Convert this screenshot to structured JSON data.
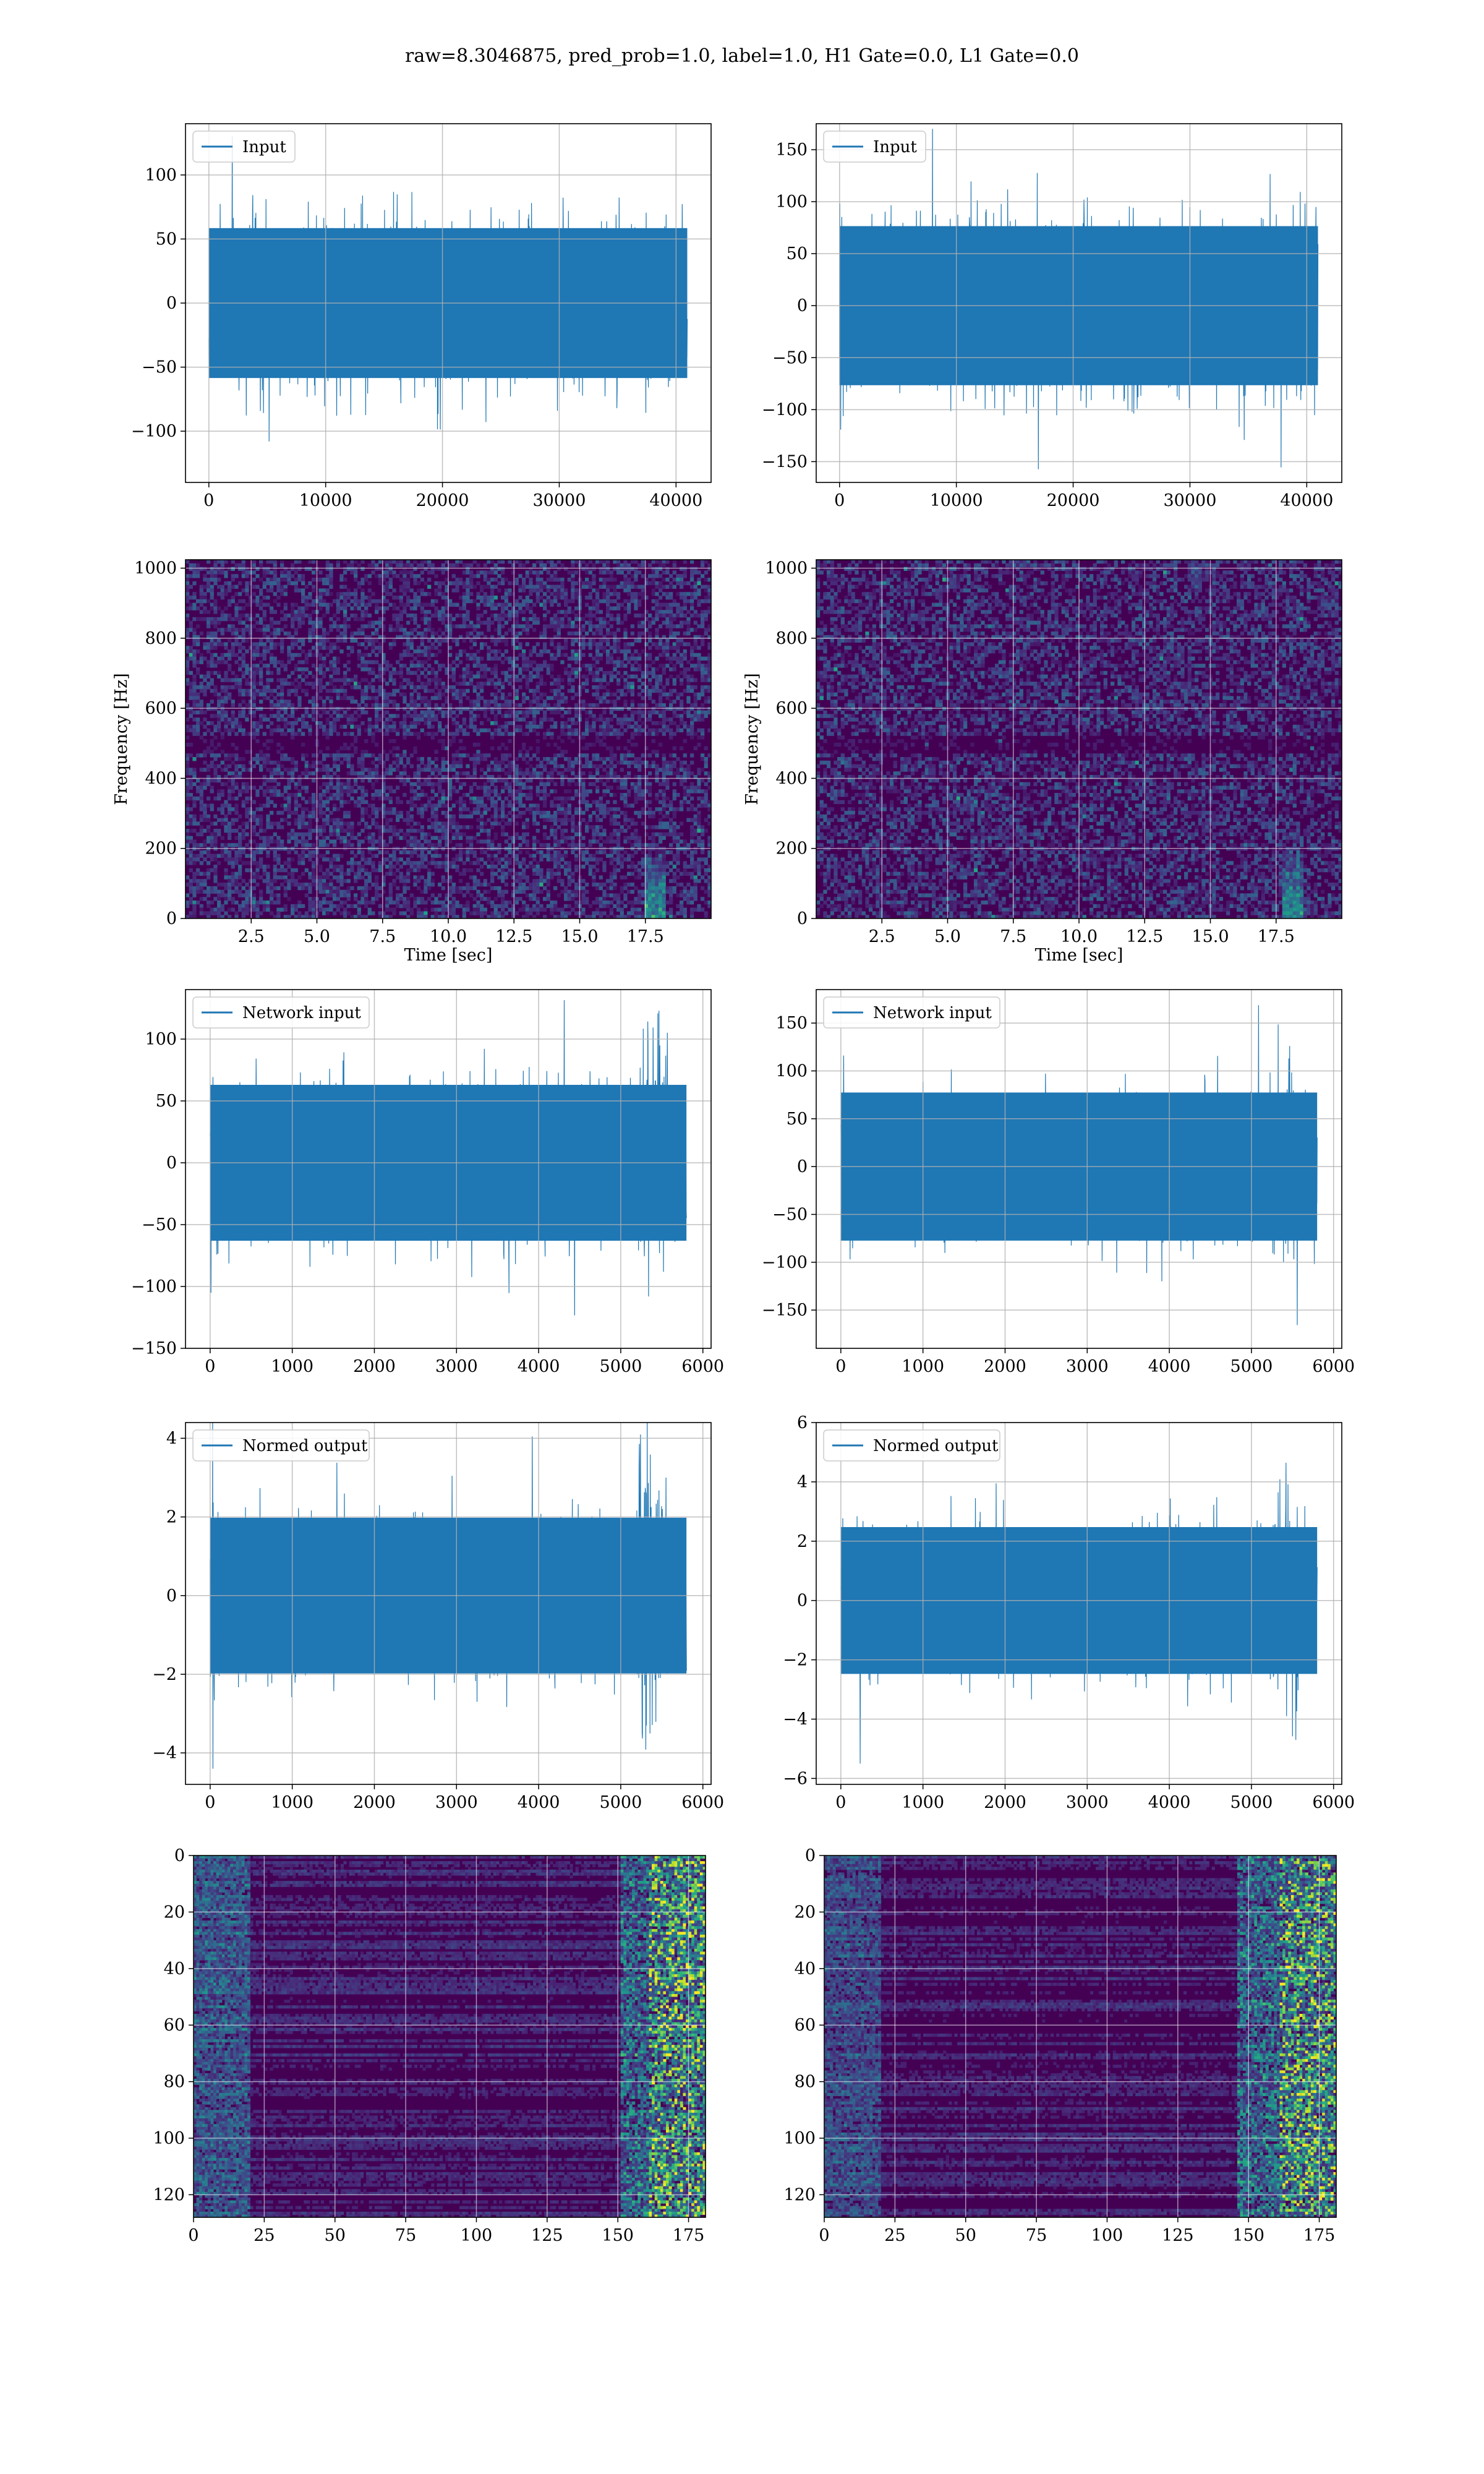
{
  "suptitle": "raw=8.3046875, pred_prob=1.0, label=1.0, H1 Gate=0.0, L1 Gate=0.0",
  "colors": {
    "line": "#1f77b4",
    "grid": "#b0b0b0",
    "viridis_dark": "#440154"
  },
  "chart_data": [
    {
      "id": "input-h1",
      "type": "line",
      "series": [
        {
          "name": "Input",
          "n_samples": 40960,
          "amplitude_abs_max": 130
        }
      ],
      "xlim": [
        -2000,
        43000
      ],
      "ylim": [
        -140,
        140
      ],
      "xticks": [
        0,
        10000,
        20000,
        30000,
        40000
      ],
      "xtick_labels": [
        "0",
        "10000",
        "20000",
        "30000",
        "40000"
      ],
      "yticks": [
        -100,
        -50,
        0,
        50,
        100
      ],
      "ytick_labels": [
        "−100",
        "−50",
        "0",
        "50",
        "100"
      ],
      "xlabel": "",
      "ylabel": "",
      "legend": "upper-left",
      "grid": true
    },
    {
      "id": "input-l1",
      "type": "line",
      "series": [
        {
          "name": "Input",
          "n_samples": 40960,
          "amplitude_abs_max": 170
        }
      ],
      "xlim": [
        -2000,
        43000
      ],
      "ylim": [
        -170,
        175
      ],
      "xticks": [
        0,
        10000,
        20000,
        30000,
        40000
      ],
      "xtick_labels": [
        "0",
        "10000",
        "20000",
        "30000",
        "40000"
      ],
      "yticks": [
        -150,
        -100,
        -50,
        0,
        50,
        100,
        150
      ],
      "ytick_labels": [
        "−150",
        "−100",
        "−50",
        "0",
        "50",
        "100",
        "150"
      ],
      "xlabel": "",
      "ylabel": "",
      "legend": "upper-left",
      "grid": true
    },
    {
      "id": "spectrogram-h1",
      "type": "heatmap",
      "colormap": "viridis",
      "xlim": [
        0,
        20
      ],
      "ylim": [
        0,
        1024
      ],
      "xticks": [
        2.5,
        5.0,
        7.5,
        10.0,
        12.5,
        15.0,
        17.5
      ],
      "xtick_labels": [
        "2.5",
        "5.0",
        "7.5",
        "10.0",
        "12.5",
        "15.0",
        "17.5"
      ],
      "yticks": [
        0,
        200,
        400,
        600,
        800,
        1000
      ],
      "ytick_labels": [
        "0",
        "200",
        "400",
        "600",
        "800",
        "1000"
      ],
      "xlabel": "Time [sec]",
      "ylabel": "Frequency [Hz]",
      "grid": true
    },
    {
      "id": "spectrogram-l1",
      "type": "heatmap",
      "colormap": "viridis",
      "xlim": [
        0,
        20
      ],
      "ylim": [
        0,
        1024
      ],
      "xticks": [
        2.5,
        5.0,
        7.5,
        10.0,
        12.5,
        15.0,
        17.5
      ],
      "xtick_labels": [
        "2.5",
        "5.0",
        "7.5",
        "10.0",
        "12.5",
        "15.0",
        "17.5"
      ],
      "yticks": [
        0,
        200,
        400,
        600,
        800,
        1000
      ],
      "ytick_labels": [
        "0",
        "200",
        "400",
        "600",
        "800",
        "1000"
      ],
      "xlabel": "Time [sec]",
      "ylabel": "Frequency [Hz]",
      "grid": true
    },
    {
      "id": "network-input-h1",
      "type": "line",
      "series": [
        {
          "name": "Network input",
          "n_samples": 5800,
          "amplitude_abs_max": 140
        }
      ],
      "xlim": [
        -300,
        6100
      ],
      "ylim": [
        -150,
        140
      ],
      "xticks": [
        0,
        1000,
        2000,
        3000,
        4000,
        5000,
        6000
      ],
      "xtick_labels": [
        "0",
        "1000",
        "2000",
        "3000",
        "4000",
        "5000",
        "6000"
      ],
      "yticks": [
        -150,
        -100,
        -50,
        0,
        50,
        100
      ],
      "ytick_labels": [
        "−150",
        "−100",
        "−50",
        "0",
        "50",
        "100"
      ],
      "xlabel": "",
      "ylabel": "",
      "legend": "upper-left",
      "grid": true
    },
    {
      "id": "network-input-l1",
      "type": "line",
      "series": [
        {
          "name": "Network input",
          "n_samples": 5800,
          "amplitude_abs_max": 172
        }
      ],
      "xlim": [
        -300,
        6100
      ],
      "ylim": [
        -190,
        185
      ],
      "xticks": [
        0,
        1000,
        2000,
        3000,
        4000,
        5000,
        6000
      ],
      "xtick_labels": [
        "0",
        "1000",
        "2000",
        "3000",
        "4000",
        "5000",
        "6000"
      ],
      "yticks": [
        -150,
        -100,
        -50,
        0,
        50,
        100,
        150
      ],
      "ytick_labels": [
        "−150",
        "−100",
        "−50",
        "0",
        "50",
        "100",
        "150"
      ],
      "xlabel": "",
      "ylabel": "",
      "legend": "upper-left",
      "grid": true
    },
    {
      "id": "normed-output-h1",
      "type": "line",
      "series": [
        {
          "name": "Normed output",
          "n_samples": 5800,
          "amplitude_abs_max": 4.4
        }
      ],
      "xlim": [
        -300,
        6100
      ],
      "ylim": [
        -4.8,
        4.4
      ],
      "xticks": [
        0,
        1000,
        2000,
        3000,
        4000,
        5000,
        6000
      ],
      "xtick_labels": [
        "0",
        "1000",
        "2000",
        "3000",
        "4000",
        "5000",
        "6000"
      ],
      "yticks": [
        -4,
        -2,
        0,
        2,
        4
      ],
      "ytick_labels": [
        "−4",
        "−2",
        "0",
        "2",
        "4"
      ],
      "xlabel": "",
      "ylabel": "",
      "legend": "upper-left",
      "grid": true
    },
    {
      "id": "normed-output-l1",
      "type": "line",
      "series": [
        {
          "name": "Normed output",
          "n_samples": 5800,
          "amplitude_abs_max": 5.5
        }
      ],
      "xlim": [
        -300,
        6100
      ],
      "ylim": [
        -6.2,
        6.0
      ],
      "xticks": [
        0,
        1000,
        2000,
        3000,
        4000,
        5000,
        6000
      ],
      "xtick_labels": [
        "0",
        "1000",
        "2000",
        "3000",
        "4000",
        "5000",
        "6000"
      ],
      "yticks": [
        -6,
        -4,
        -2,
        0,
        2,
        4,
        6
      ],
      "ytick_labels": [
        "−6",
        "−4",
        "−2",
        "0",
        "2",
        "4",
        "6"
      ],
      "xlabel": "",
      "ylabel": "",
      "legend": "upper-left",
      "grid": true
    },
    {
      "id": "feature-map-h1",
      "type": "heatmap",
      "colormap": "viridis",
      "xlim": [
        0,
        181
      ],
      "ylim": [
        128,
        0
      ],
      "xticks": [
        0,
        25,
        50,
        75,
        100,
        125,
        150,
        175
      ],
      "xtick_labels": [
        "0",
        "25",
        "50",
        "75",
        "100",
        "125",
        "150",
        "175"
      ],
      "yticks": [
        0,
        20,
        40,
        60,
        80,
        100,
        120
      ],
      "ytick_labels": [
        "0",
        "20",
        "40",
        "60",
        "80",
        "100",
        "120"
      ],
      "xlabel": "",
      "ylabel": "",
      "grid": true
    },
    {
      "id": "feature-map-l1",
      "type": "heatmap",
      "colormap": "viridis",
      "xlim": [
        0,
        181
      ],
      "ylim": [
        128,
        0
      ],
      "xticks": [
        0,
        25,
        50,
        75,
        100,
        125,
        150,
        175
      ],
      "xtick_labels": [
        "0",
        "25",
        "50",
        "75",
        "100",
        "125",
        "150",
        "175"
      ],
      "yticks": [
        0,
        20,
        40,
        60,
        80,
        100,
        120
      ],
      "ytick_labels": [
        "0",
        "20",
        "40",
        "60",
        "80",
        "100",
        "120"
      ],
      "xlabel": "",
      "ylabel": "",
      "grid": true
    }
  ]
}
